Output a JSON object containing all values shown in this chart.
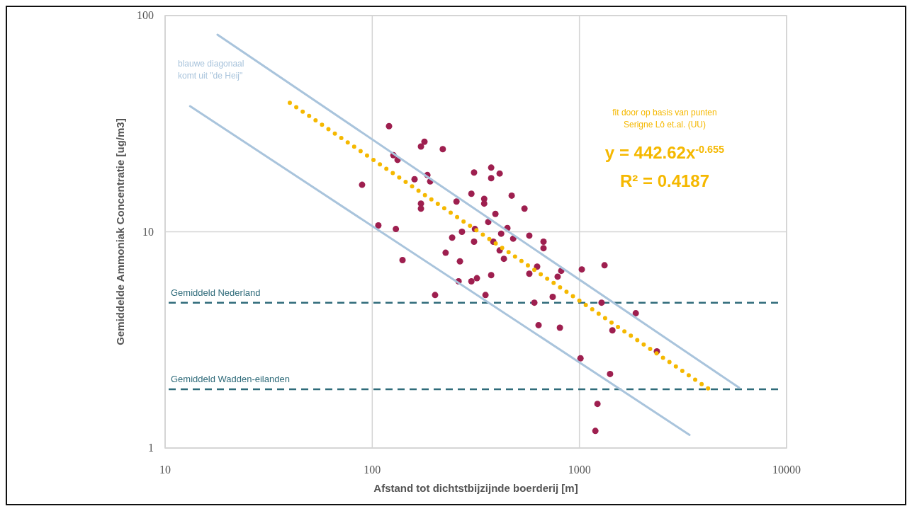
{
  "chart_data": {
    "type": "scatter",
    "xlabel": "Afstand tot dichtstbijzijnde boerderij [m]",
    "ylabel": "Gemiddelde Ammoniak Concentratie [ug/m3]",
    "log": "xy",
    "xlim": [
      10,
      10000
    ],
    "ylim": [
      1,
      100
    ],
    "xticks": [
      10,
      100,
      1000,
      10000
    ],
    "yticks": [
      1,
      10,
      100
    ],
    "grid": true,
    "series": [
      {
        "marker": "circle",
        "color": "#9e1f4f",
        "x": [
          120.5,
          178.6,
          171.8,
          219,
          89.3,
          126.5,
          132.5,
          160,
          184.5,
          190.4,
          171.8,
          171.8,
          310,
          375,
          412,
          375,
          301,
          255,
          347,
          347,
          471,
          543,
          393,
          107,
          130,
          363,
          449,
          313,
          271,
          243,
          310,
          419,
          384,
          479,
          573,
          671,
          671,
          226,
          265,
          140,
          412,
          432,
          625,
          573,
          785,
          817,
          1027,
          1322,
          375,
          320,
          301,
          261,
          201,
          352,
          743,
          606,
          1279,
          1871,
          635,
          805,
          1443,
          2366,
          1012,
          1406,
          1222,
          1194
        ],
        "values": [
          30.8,
          26.1,
          24.8,
          24.1,
          16.5,
          22.6,
          21.5,
          17.5,
          18.3,
          17.1,
          13.5,
          12.8,
          18.8,
          19.8,
          18.6,
          17.7,
          15.0,
          13.8,
          14.2,
          13.5,
          14.7,
          12.8,
          12.1,
          10.7,
          10.3,
          11.1,
          10.4,
          10.3,
          10.0,
          9.4,
          9.0,
          9.8,
          9.0,
          9.3,
          9.6,
          9.0,
          8.4,
          8.0,
          7.3,
          7.4,
          8.2,
          7.5,
          6.9,
          6.4,
          6.2,
          6.6,
          6.7,
          7.0,
          6.3,
          6.1,
          5.9,
          5.9,
          5.1,
          5.1,
          5.0,
          4.7,
          4.7,
          4.2,
          3.7,
          3.6,
          3.5,
          2.8,
          2.6,
          2.2,
          1.6,
          1.2
        ]
      },
      {
        "type": "line",
        "marker": "none",
        "line_style": "solid",
        "color": "#a9c4dc",
        "x": [
          17.9,
          5900
        ],
        "values": [
          81.6,
          1.9
        ]
      },
      {
        "type": "line",
        "marker": "none",
        "line_style": "solid",
        "color": "#a9c4dc",
        "x": [
          13.2,
          3400
        ],
        "values": [
          38.1,
          1.15
        ]
      },
      {
        "type": "line",
        "marker": "none",
        "line_style": "dotted",
        "color": "#f5b800",
        "x": [
          40,
          4300
        ],
        "values": [
          39.5,
          1.85
        ]
      }
    ],
    "ref_lines": [
      {
        "axis": "y",
        "value": 4.7,
        "label": "Gemiddeld Nederland",
        "color": "#2f6b7a",
        "line_style": "dashed"
      },
      {
        "axis": "y",
        "value": 1.87,
        "label": "Gemiddeld Wadden-eilanden",
        "color": "#2f6b7a",
        "line_style": "dashed"
      }
    ],
    "annotations": [
      "blauwe diagonaal",
      "komt uit \"de Heij\"",
      "fit door op basis van punten",
      "Serigne Lô et.al. (UU)",
      "y = 442.62x$^{-0.655}$",
      "R² = 0.4187"
    ]
  }
}
